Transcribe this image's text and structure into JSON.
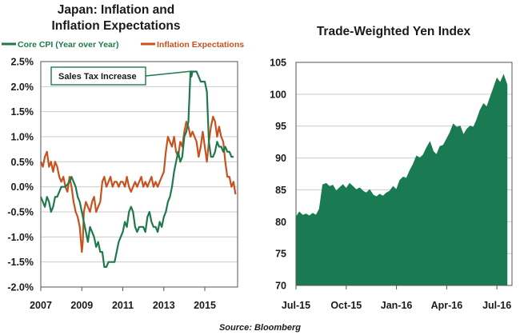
{
  "colors": {
    "core_cpi": "#1e7a4c",
    "inflation_expectations": "#c8521e",
    "yen_fill": "#1a7a52",
    "grid": "#cccccc",
    "axis": "#555555"
  },
  "source": "Source: Bloomberg",
  "chart_data": [
    {
      "type": "line",
      "title": "Japan: Inflation and",
      "subtitle": "Inflation Expectations",
      "xlabel": "",
      "ylabel": "",
      "xlim": [
        2007,
        2016.6
      ],
      "ylim": [
        -2.0,
        2.5
      ],
      "yticks": [
        -2.0,
        -1.5,
        -1.0,
        -0.5,
        0.0,
        0.5,
        1.0,
        1.5,
        2.0,
        2.5
      ],
      "ytick_labels": [
        "-2.0%",
        "-1.5%",
        "-1.0%",
        "-0.5%",
        "0.0%",
        "0.5%",
        "1.0%",
        "1.5%",
        "2.0%",
        "2.5%"
      ],
      "xticks": [
        2007,
        2009,
        2011,
        2013,
        2015
      ],
      "xtick_labels": [
        "2007",
        "2009",
        "2011",
        "2013",
        "2015"
      ],
      "grid": true,
      "legend_position": "top",
      "annotation": {
        "text": "Sales Tax Increase",
        "x": 2014.3,
        "y": 2.3
      },
      "series": [
        {
          "name": "Core CPI (Year over Year)",
          "x": [
            2007.0,
            2007.1,
            2007.2,
            2007.3,
            2007.4,
            2007.5,
            2007.6,
            2007.7,
            2007.8,
            2007.9,
            2008.0,
            2008.2,
            2008.4,
            2008.5,
            2008.6,
            2008.7,
            2008.8,
            2008.9,
            2009.0,
            2009.1,
            2009.2,
            2009.3,
            2009.4,
            2009.5,
            2009.6,
            2009.7,
            2009.8,
            2009.9,
            2010.0,
            2010.1,
            2010.2,
            2010.3,
            2010.4,
            2010.5,
            2010.6,
            2010.7,
            2010.8,
            2010.9,
            2011.0,
            2011.1,
            2011.2,
            2011.3,
            2011.4,
            2011.5,
            2011.6,
            2011.7,
            2011.8,
            2011.9,
            2012.0,
            2012.1,
            2012.2,
            2012.3,
            2012.4,
            2012.5,
            2012.6,
            2012.7,
            2012.8,
            2012.9,
            2013.0,
            2013.1,
            2013.2,
            2013.3,
            2013.4,
            2013.5,
            2013.6,
            2013.7,
            2013.8,
            2013.9,
            2014.0,
            2014.1,
            2014.2,
            2014.3,
            2014.35,
            2014.4,
            2014.5,
            2014.6,
            2014.7,
            2014.8,
            2014.9,
            2015.0,
            2015.1,
            2015.2,
            2015.3,
            2015.4,
            2015.5,
            2015.6,
            2015.7,
            2015.8,
            2015.9,
            2016.0,
            2016.1,
            2016.2,
            2016.3,
            2016.4
          ],
          "values": [
            -0.2,
            -0.3,
            -0.4,
            -0.2,
            -0.3,
            -0.5,
            -0.4,
            -0.2,
            -0.2,
            -0.1,
            0.0,
            0.0,
            0.1,
            0.2,
            0.1,
            0.0,
            -0.2,
            -0.3,
            -0.5,
            -0.7,
            -0.9,
            -1.1,
            -0.8,
            -0.9,
            -1.0,
            -1.2,
            -1.1,
            -1.3,
            -1.3,
            -1.6,
            -1.6,
            -1.5,
            -1.5,
            -1.5,
            -1.5,
            -1.3,
            -1.1,
            -1.0,
            -0.9,
            -0.7,
            -0.8,
            -0.5,
            -0.4,
            -0.5,
            -0.8,
            -0.9,
            -0.8,
            -0.8,
            -0.8,
            -0.9,
            -0.6,
            -0.5,
            -0.7,
            -0.8,
            -0.8,
            -0.9,
            -0.7,
            -0.8,
            -0.6,
            -0.5,
            -0.3,
            -0.2,
            0.0,
            0.3,
            0.5,
            0.7,
            0.5,
            0.6,
            1.0,
            1.1,
            1.3,
            2.3,
            2.2,
            2.3,
            2.3,
            2.3,
            2.2,
            2.1,
            2.1,
            2.1,
            1.9,
            0.9,
            0.6,
            0.6,
            0.7,
            0.9,
            0.8,
            0.8,
            0.7,
            0.8,
            0.7,
            0.7,
            0.6,
            0.6
          ]
        },
        {
          "name": "Inflation Expectations",
          "x": [
            2007.0,
            2007.1,
            2007.2,
            2007.3,
            2007.4,
            2007.5,
            2007.6,
            2007.7,
            2007.8,
            2007.9,
            2008.0,
            2008.1,
            2008.2,
            2008.3,
            2008.4,
            2008.5,
            2008.6,
            2008.7,
            2008.8,
            2008.9,
            2009.0,
            2009.05,
            2009.1,
            2009.2,
            2009.3,
            2009.4,
            2009.5,
            2009.6,
            2009.7,
            2009.8,
            2009.9,
            2010.0,
            2010.1,
            2010.2,
            2010.3,
            2010.4,
            2010.5,
            2010.6,
            2010.7,
            2010.8,
            2010.9,
            2011.0,
            2011.1,
            2011.2,
            2011.3,
            2011.4,
            2011.5,
            2011.6,
            2011.7,
            2011.8,
            2011.9,
            2012.0,
            2012.1,
            2012.2,
            2012.3,
            2012.4,
            2012.5,
            2012.6,
            2012.7,
            2012.8,
            2012.9,
            2013.0,
            2013.1,
            2013.2,
            2013.3,
            2013.4,
            2013.5,
            2013.6,
            2013.7,
            2013.8,
            2013.9,
            2014.0,
            2014.1,
            2014.2,
            2014.3,
            2014.4,
            2014.5,
            2014.6,
            2014.7,
            2014.8,
            2014.9,
            2015.0,
            2015.1,
            2015.2,
            2015.3,
            2015.4,
            2015.5,
            2015.6,
            2015.7,
            2015.8,
            2015.9,
            2016.0,
            2016.1,
            2016.2,
            2016.3,
            2016.4,
            2016.5
          ],
          "values": [
            0.5,
            0.4,
            0.6,
            0.7,
            0.4,
            0.5,
            0.3,
            0.5,
            0.4,
            0.2,
            0.1,
            0.2,
            0.0,
            -0.1,
            0.2,
            0.0,
            -0.3,
            -0.5,
            -0.6,
            -0.8,
            -1.3,
            -1.1,
            -0.5,
            -0.3,
            -0.4,
            -0.5,
            -0.3,
            -0.2,
            -0.5,
            -0.4,
            -0.3,
            0.1,
            0.2,
            0.0,
            0.1,
            0.2,
            0.0,
            0.1,
            0.1,
            0.0,
            0.1,
            0.1,
            0.0,
            0.2,
            0.0,
            -0.1,
            0.0,
            0.1,
            0.0,
            0.1,
            0.2,
            0.0,
            0.1,
            0.0,
            0.1,
            0.2,
            0.0,
            0.1,
            0.0,
            0.1,
            0.2,
            0.3,
            0.7,
            1.0,
            0.9,
            0.8,
            1.0,
            0.7,
            0.6,
            0.9,
            0.8,
            1.1,
            1.3,
            1.2,
            1.0,
            1.1,
            1.0,
            0.9,
            0.6,
            0.8,
            1.1,
            0.8,
            0.5,
            0.9,
            1.2,
            1.4,
            1.3,
            1.0,
            1.2,
            1.0,
            0.9,
            0.5,
            0.2,
            0.2,
            0.0,
            0.1,
            -0.15
          ]
        }
      ]
    },
    {
      "type": "area",
      "title": "Trade-Weighted Yen Index",
      "xlabel": "",
      "ylabel": "",
      "ylim": [
        70,
        105
      ],
      "yticks": [
        70,
        75,
        80,
        85,
        90,
        95,
        100,
        105
      ],
      "xtick_labels": [
        "Jul-15",
        "Oct-15",
        "Jan-16",
        "Apr-16",
        "Jul-16"
      ],
      "xtick_positions": [
        0,
        3,
        6,
        9,
        12
      ],
      "grid": true,
      "series": [
        {
          "name": "",
          "x": [
            0,
            0.2,
            0.4,
            0.6,
            0.8,
            1.0,
            1.2,
            1.4,
            1.6,
            1.8,
            2.0,
            2.2,
            2.4,
            2.6,
            2.8,
            3.0,
            3.2,
            3.4,
            3.6,
            3.8,
            4.0,
            4.2,
            4.4,
            4.6,
            4.8,
            5.0,
            5.2,
            5.4,
            5.6,
            5.8,
            6.0,
            6.2,
            6.4,
            6.6,
            6.8,
            7.0,
            7.2,
            7.4,
            7.6,
            7.8,
            8.0,
            8.2,
            8.4,
            8.6,
            8.8,
            9.0,
            9.2,
            9.4,
            9.6,
            9.8,
            10.0,
            10.2,
            10.4,
            10.6,
            10.8,
            11.0,
            11.2,
            11.4,
            11.6,
            11.8,
            12.0,
            12.2,
            12.4,
            12.6
          ],
          "values": [
            80.7,
            81.5,
            81.0,
            81.2,
            80.9,
            81.3,
            81.0,
            82.0,
            85.8,
            86.0,
            85.5,
            85.7,
            84.8,
            85.3,
            85.8,
            85.2,
            86.0,
            85.5,
            85.0,
            85.3,
            84.8,
            84.5,
            85.0,
            84.2,
            83.9,
            84.3,
            84.0,
            84.5,
            84.8,
            85.5,
            85.0,
            86.5,
            87.0,
            86.8,
            88.0,
            89.0,
            90.3,
            90.0,
            90.5,
            91.6,
            92.5,
            91.0,
            90.5,
            91.8,
            92.0,
            93.0,
            94.0,
            95.3,
            94.8,
            95.0,
            93.6,
            94.5,
            95.0,
            94.8,
            96.0,
            97.5,
            98.5,
            98.0,
            99.5,
            101.0,
            102.5,
            101.8,
            103.0,
            101.5
          ]
        }
      ]
    }
  ]
}
